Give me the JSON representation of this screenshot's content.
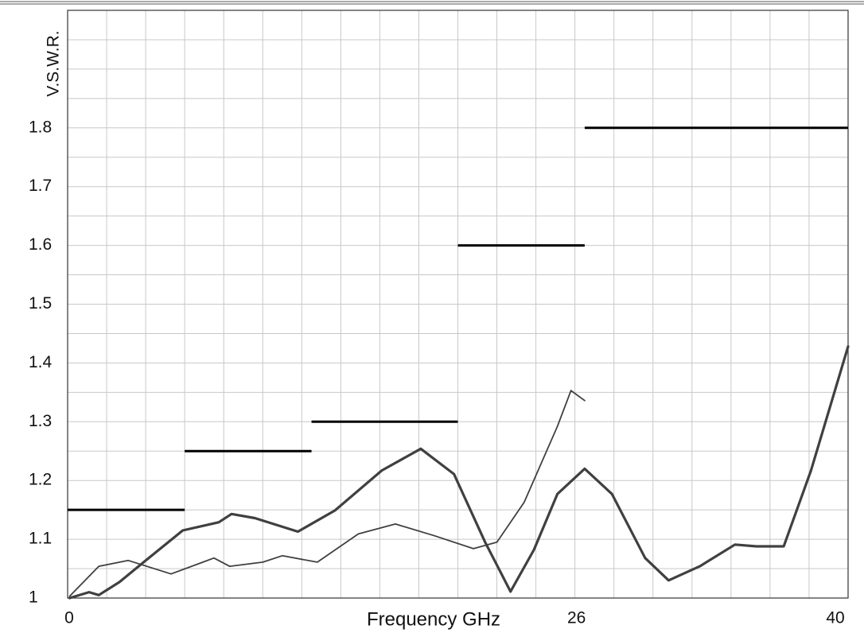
{
  "chart_data": {
    "type": "line",
    "ylabel": "V.S.W.R.",
    "xlabel": "Frequency GHz",
    "xlim": [
      0,
      40
    ],
    "ylim": [
      1,
      2
    ],
    "xticks": [
      0,
      26,
      40
    ],
    "yticks": [
      1,
      1.1,
      1.2,
      1.3,
      1.4,
      1.5,
      1.6,
      1.7,
      1.8
    ],
    "grid": true,
    "xgrid": [
      0,
      2,
      4,
      6,
      8,
      10,
      12,
      14,
      16,
      18,
      20,
      22,
      24,
      26,
      28,
      30,
      32,
      34,
      36,
      38,
      40
    ],
    "ygrid": [
      1,
      1.05,
      1.1,
      1.15,
      1.2,
      1.25,
      1.3,
      1.35,
      1.4,
      1.45,
      1.5,
      1.55,
      1.6,
      1.65,
      1.7,
      1.75,
      1.8,
      1.85,
      1.9,
      1.95,
      2
    ],
    "series": [
      {
        "color": "#404040",
        "width": 3.2,
        "x": [
          0.1,
          1.1,
          1.6,
          2.65,
          3.9,
          5.9,
          7.75,
          8.4,
          9.6,
          11.8,
          13.7,
          16.1,
          18.1,
          19.8,
          21.4,
          22.7,
          23.9,
          25.1,
          26.5,
          27.9,
          29.6,
          30.8,
          32.4,
          34.2,
          35.3,
          36.7,
          38.1,
          40
        ],
        "values": [
          1.0,
          1.01,
          1.005,
          1.027,
          1.061,
          1.115,
          1.129,
          1.143,
          1.136,
          1.113,
          1.149,
          1.217,
          1.254,
          1.211,
          1.095,
          1.011,
          1.082,
          1.177,
          1.22,
          1.177,
          1.068,
          1.03,
          1.054,
          1.091,
          1.088,
          1.088,
          1.217,
          1.428
        ]
      },
      {
        "color": "#404040",
        "width": 1.8,
        "x": [
          0.1,
          1.6,
          3.1,
          5.3,
          7.5,
          8.3,
          10,
          11,
          12.8,
          14.9,
          16.8,
          18.8,
          20.8,
          22,
          23.4,
          25.1,
          25.8,
          26.5
        ],
        "values": [
          1.003,
          1.054,
          1.064,
          1.041,
          1.068,
          1.054,
          1.061,
          1.072,
          1.061,
          1.109,
          1.126,
          1.106,
          1.084,
          1.095,
          1.163,
          1.292,
          1.353,
          1.336
        ]
      }
    ],
    "limit_segments": [
      {
        "x": [
          0,
          6
        ],
        "y": 1.15
      },
      {
        "x": [
          6,
          12.5
        ],
        "y": 1.25
      },
      {
        "x": [
          12.5,
          20
        ],
        "y": 1.3
      },
      {
        "x": [
          20,
          26.5
        ],
        "y": 1.6
      },
      {
        "x": [
          26.5,
          40
        ],
        "y": 1.8
      }
    ],
    "limit_color": "#000000"
  }
}
